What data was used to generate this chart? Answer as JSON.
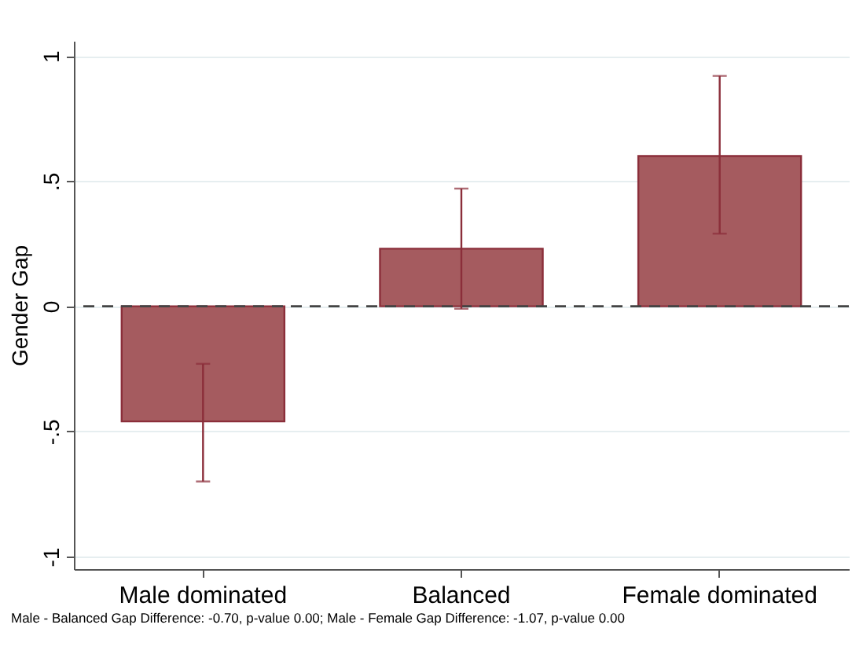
{
  "chart_data": {
    "type": "bar",
    "ylabel": "Gender Gap",
    "categories": [
      "Male dominated",
      "Balanced",
      "Female dominated"
    ],
    "values": [
      -0.46,
      0.23,
      0.6
    ],
    "color": "#a55b5f",
    "errors": [
      [
        -0.7,
        -0.23
      ],
      [
        -0.01,
        0.47
      ],
      [
        0.29,
        0.92
      ]
    ],
    "ylim": [
      -1.05,
      1.06
    ],
    "yticks": [
      {
        "value": -1,
        "label": "-1"
      },
      {
        "value": -0.5,
        "label": "-.5"
      },
      {
        "value": 0,
        "label": "0"
      },
      {
        "value": 0.5,
        "label": ".5"
      },
      {
        "value": 1,
        "label": "1"
      }
    ],
    "grid": "y",
    "ref_lines": [
      {
        "axis": "y",
        "value": 0,
        "label": null,
        "color": "#444444",
        "line_style": "dashed"
      }
    ],
    "annotations": [
      "Male - Balanced Gap Difference: -0.70, p-value 0.00; Male - Female Gap Difference: -1.07, p-value 0.00"
    ]
  }
}
